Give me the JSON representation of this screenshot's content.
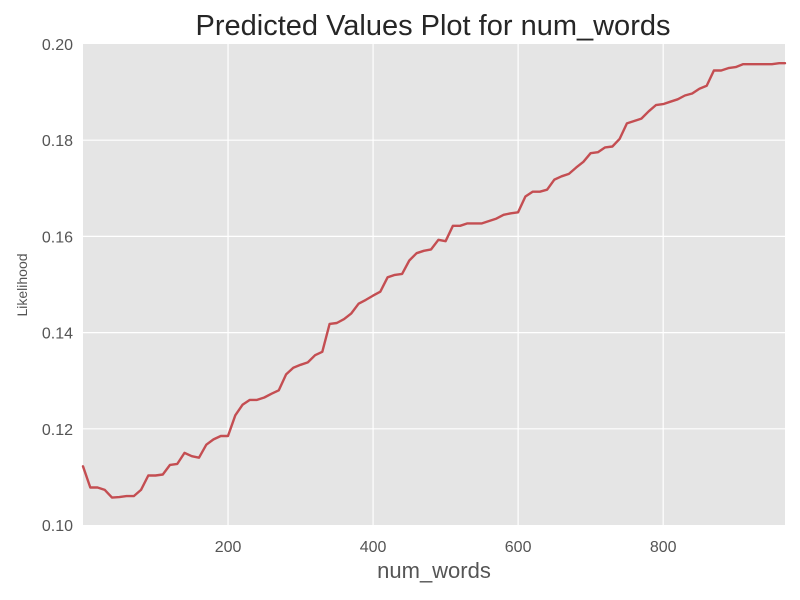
{
  "chart_data": {
    "type": "line",
    "title": "Predicted Values Plot for num_words",
    "xlabel": "num_words",
    "ylabel": "Likelihood",
    "xlim": [
      0,
      968
    ],
    "ylim": [
      0.1,
      0.2
    ],
    "xticks": [
      200,
      400,
      600,
      800
    ],
    "xtick_labels": [
      "200",
      "400",
      "600",
      "800"
    ],
    "yticks": [
      0.1,
      0.12,
      0.14,
      0.16,
      0.18,
      0.2
    ],
    "ytick_labels": [
      "0.10",
      "0.12",
      "0.14",
      "0.16",
      "0.18",
      "0.20"
    ],
    "grid": true,
    "legend": "none",
    "colors": {
      "plot_background": "#e5e5e5",
      "grid": "#ffffff",
      "line": "#c44e52"
    },
    "series": [
      {
        "x": [
          0,
          10,
          20,
          30,
          40,
          50,
          60,
          70,
          80,
          90,
          100,
          110,
          120,
          130,
          140,
          150,
          160,
          170,
          180,
          190,
          200,
          210,
          220,
          230,
          240,
          250,
          260,
          270,
          280,
          290,
          300,
          310,
          320,
          330,
          340,
          350,
          360,
          370,
          380,
          390,
          400,
          410,
          420,
          430,
          440,
          450,
          460,
          470,
          480,
          490,
          500,
          510,
          520,
          530,
          540,
          550,
          560,
          570,
          580,
          590,
          600,
          610,
          620,
          630,
          640,
          650,
          660,
          670,
          680,
          690,
          700,
          710,
          720,
          730,
          740,
          750,
          760,
          770,
          780,
          790,
          800,
          810,
          820,
          830,
          840,
          850,
          860,
          870,
          880,
          890,
          900,
          910,
          920,
          930,
          940,
          950,
          960,
          968
        ],
        "values": [
          0.1122,
          0.1078,
          0.1078,
          0.1073,
          0.1057,
          0.1058,
          0.106,
          0.106,
          0.1073,
          0.1103,
          0.1103,
          0.1105,
          0.1125,
          0.1127,
          0.115,
          0.1143,
          0.114,
          0.1167,
          0.1178,
          0.1185,
          0.1185,
          0.1228,
          0.125,
          0.126,
          0.126,
          0.1265,
          0.1273,
          0.128,
          0.1313,
          0.1327,
          0.1333,
          0.1338,
          0.1353,
          0.136,
          0.1418,
          0.142,
          0.1428,
          0.144,
          0.146,
          0.1468,
          0.1477,
          0.1485,
          0.1515,
          0.152,
          0.1522,
          0.155,
          0.1565,
          0.157,
          0.1573,
          0.1593,
          0.159,
          0.1622,
          0.1622,
          0.1627,
          0.1627,
          0.1627,
          0.1632,
          0.1637,
          0.1645,
          0.1648,
          0.165,
          0.1683,
          0.1693,
          0.1693,
          0.1697,
          0.1718,
          0.1725,
          0.173,
          0.1743,
          0.1755,
          0.1773,
          0.1775,
          0.1785,
          0.1787,
          0.1803,
          0.1835,
          0.184,
          0.1845,
          0.186,
          0.1873,
          0.1875,
          0.188,
          0.1885,
          0.1893,
          0.1897,
          0.1907,
          0.1913,
          0.1945,
          0.1945,
          0.195,
          0.1952,
          0.1958,
          0.1958,
          0.1958,
          0.1958,
          0.1958,
          0.196,
          0.196
        ]
      }
    ]
  }
}
